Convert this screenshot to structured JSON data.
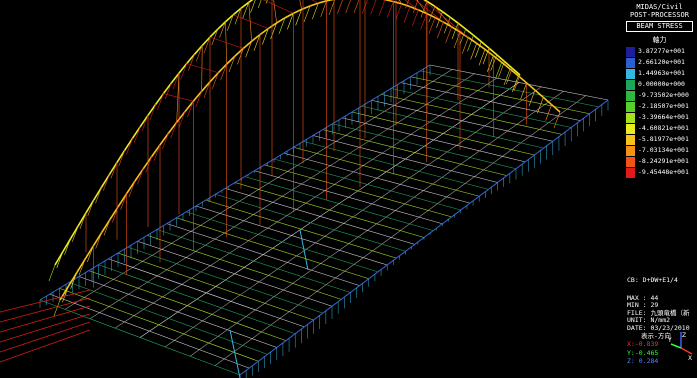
{
  "app": {
    "name": "MIDAS/Civil",
    "module": "POST-PROCESSOR",
    "result_type": "BEAM STRESS",
    "component": "軸力"
  },
  "legend": [
    {
      "value": "3.87277e+001",
      "color": "#1e1e9a"
    },
    {
      "value": "2.66120e+001",
      "color": "#2e5fd0"
    },
    {
      "value": "1.44963e+001",
      "color": "#34b7e0"
    },
    {
      "value": "0.00000e+000",
      "color": "#1fa55a"
    },
    {
      "value": "-9.73502e+000",
      "color": "#2fb840"
    },
    {
      "value": "-2.18507e+001",
      "color": "#59d02a"
    },
    {
      "value": "-3.39664e+001",
      "color": "#a6e11e"
    },
    {
      "value": "-4.60821e+001",
      "color": "#e8ee1e"
    },
    {
      "value": "-5.81977e+001",
      "color": "#f7c21a"
    },
    {
      "value": "-7.03134e+001",
      "color": "#f59018"
    },
    {
      "value": "-8.24291e+001",
      "color": "#f05418"
    },
    {
      "value": "-9.45448e+001",
      "color": "#e01a1a"
    }
  ],
  "info": {
    "cb": "CB: D+DW+E1/4",
    "max": "MAX : 44",
    "min": "MIN : 29",
    "file": "FILE: 九頭竜橋（新",
    "unit": "UNIT: N/mm2",
    "date": "DATE: 03/23/2010",
    "view_dir": "表示-方向",
    "x": "X:-0.839",
    "y": "Y:-0.465",
    "z": "Z: 0.284"
  },
  "colors": {
    "background": "#000000",
    "axis_x": "#ff3030",
    "axis_y": "#30ff30",
    "axis_z": "#4060ff"
  }
}
